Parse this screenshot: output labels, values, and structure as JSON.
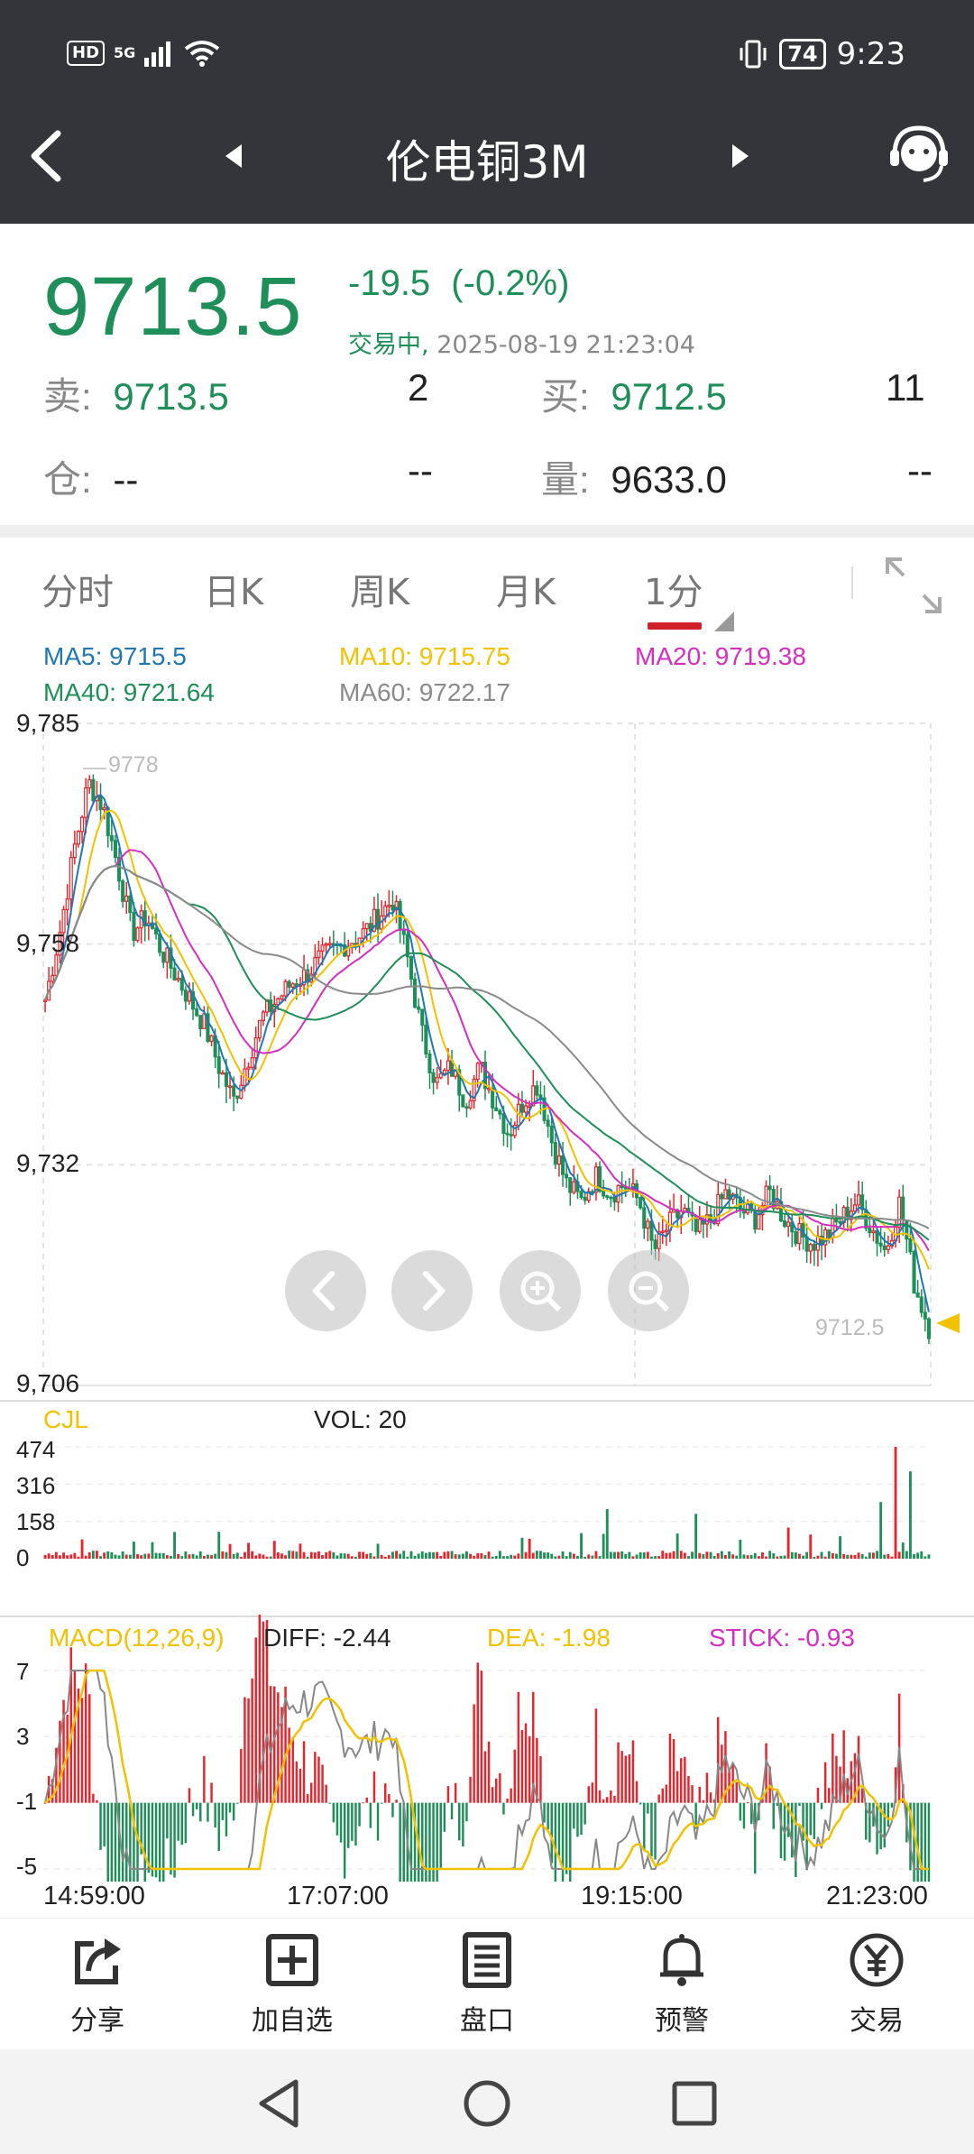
{
  "status_bar": {
    "hd": "HD",
    "network": "5G",
    "battery": "74",
    "time": "9:23"
  },
  "header": {
    "title": "伦电铜3M"
  },
  "quote": {
    "last_price": "9713.5",
    "change": "-19.5",
    "change_pct": "(-0.2%)",
    "status": "交易中,",
    "timestamp": "2025-08-19 21:23:04",
    "sell_label": "卖:",
    "sell_price": "9713.5",
    "sell_qty": "2",
    "buy_label": "买:",
    "buy_price": "9712.5",
    "buy_qty": "11",
    "position_label": "仓:",
    "position_value": "--",
    "position_change": "--",
    "volume_label": "量:",
    "volume_value": "9633.0",
    "volume_change": "--"
  },
  "tabs": [
    {
      "label": "分时"
    },
    {
      "label": "日K"
    },
    {
      "label": "周K"
    },
    {
      "label": "月K"
    },
    {
      "label": "1分"
    }
  ],
  "ma_legend": {
    "ma5": "MA5: 9715.5",
    "ma10": "MA10: 9715.75",
    "ma20": "MA20: 9719.38",
    "ma40": "MA40: 9721.64",
    "ma60": "MA60: 9722.17"
  },
  "colors": {
    "up": "#e8242c",
    "down": "#1e8f58",
    "ma5": "#1f77b4",
    "ma10": "#f2c200",
    "ma20": "#d62ec0",
    "ma40": "#1e8f58",
    "ma60": "#8a8a8a"
  },
  "chart_data": {
    "type": "candlestick",
    "price_axis": {
      "ticks": [
        "9,785",
        "9,758",
        "9,732",
        "9,706"
      ],
      "range": [
        9706,
        9785
      ]
    },
    "high_marker": "9778",
    "last_marker": "9712.5",
    "close_path": [
      9752,
      9760,
      9770,
      9778,
      9775,
      9768,
      9760,
      9762,
      9758,
      9755,
      9752,
      9749,
      9744,
      9740,
      9745,
      9750,
      9752,
      9754,
      9755,
      9757,
      9758,
      9759,
      9760,
      9762,
      9764,
      9757,
      9748,
      9742,
      9744,
      9740,
      9744,
      9740,
      9736,
      9740,
      9742,
      9735,
      9730,
      9728,
      9731,
      9729,
      9730,
      9728,
      9722,
      9725,
      9727,
      9724,
      9726,
      9729,
      9727,
      9726,
      9729,
      9726,
      9724,
      9723,
      9724,
      9726,
      9728,
      9725,
      9722,
      9728,
      9718,
      9713
    ],
    "volume": {
      "label": "CJL",
      "current": "VOL: 20",
      "ticks": [
        "474",
        "316",
        "158",
        "0"
      ]
    },
    "macd": {
      "label": "MACD(12,26,9)",
      "diff": "DIFF: -2.44",
      "dea": "DEA: -1.98",
      "stick": "STICK: -0.93",
      "ticks": [
        "7",
        "3",
        "-1",
        "-5"
      ]
    },
    "time_ticks": [
      "14:59:00",
      "17:07:00",
      "19:15:00",
      "21:23:00"
    ]
  },
  "toolbar": [
    {
      "label": "分享",
      "icon": "share-icon"
    },
    {
      "label": "加自选",
      "icon": "add-watchlist-icon"
    },
    {
      "label": "盘口",
      "icon": "order-book-icon"
    },
    {
      "label": "预警",
      "icon": "bell-icon"
    },
    {
      "label": "交易",
      "icon": "yen-icon"
    }
  ]
}
